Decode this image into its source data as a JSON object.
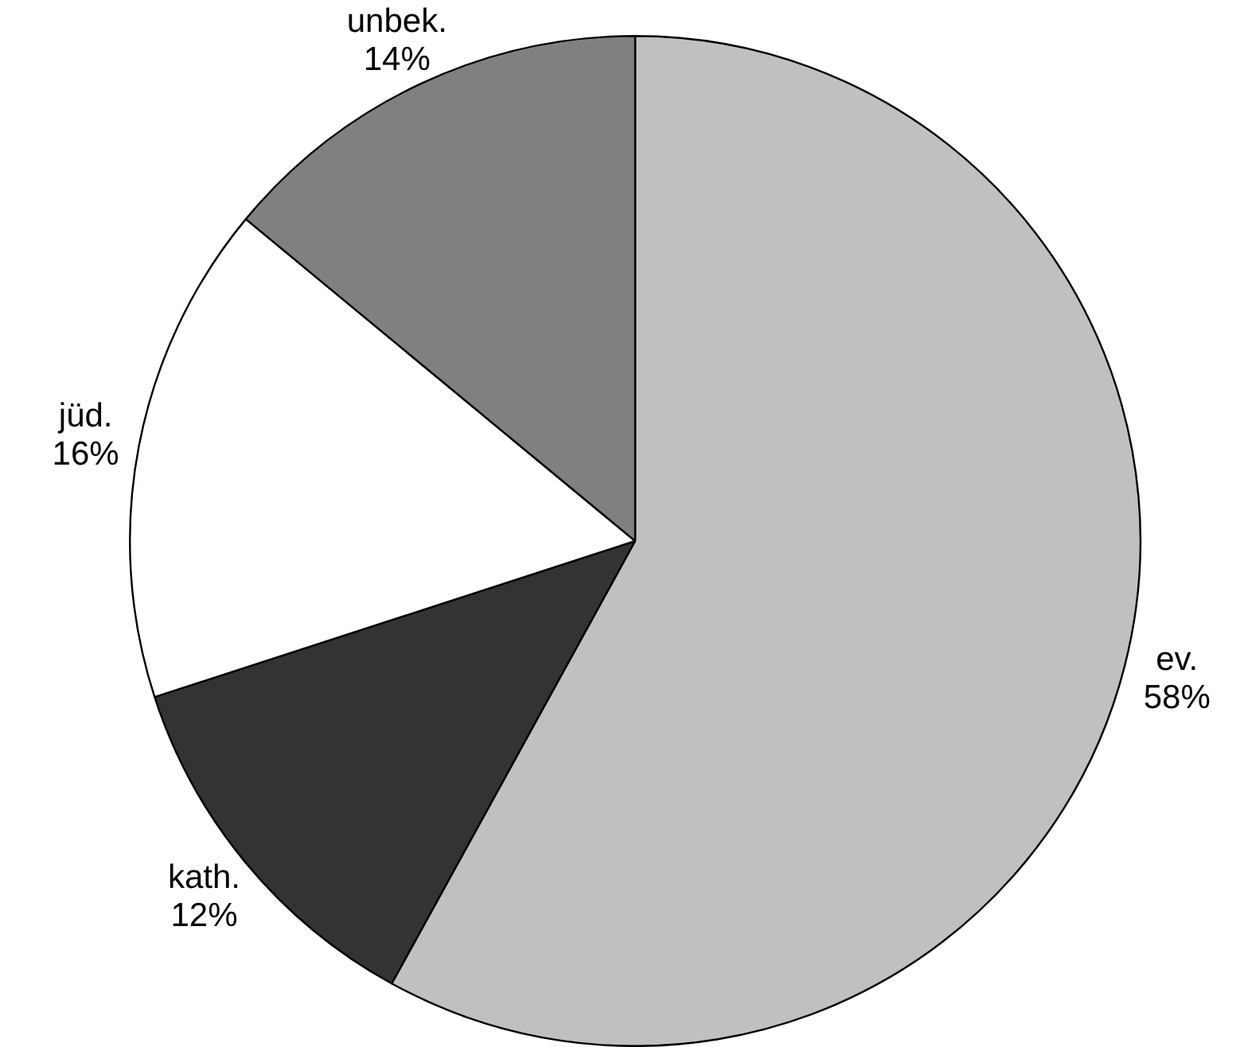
{
  "chart_data": {
    "type": "pie",
    "categories": [
      "ev.",
      "kath.",
      "jüd.",
      "unbek."
    ],
    "values": [
      58,
      12,
      16,
      14
    ],
    "colors": [
      "#c0c0c0",
      "#333333",
      "#ffffff",
      "#808080"
    ],
    "legend": false,
    "value_labels": [
      "58%",
      "12%",
      "16%",
      "14%"
    ]
  }
}
